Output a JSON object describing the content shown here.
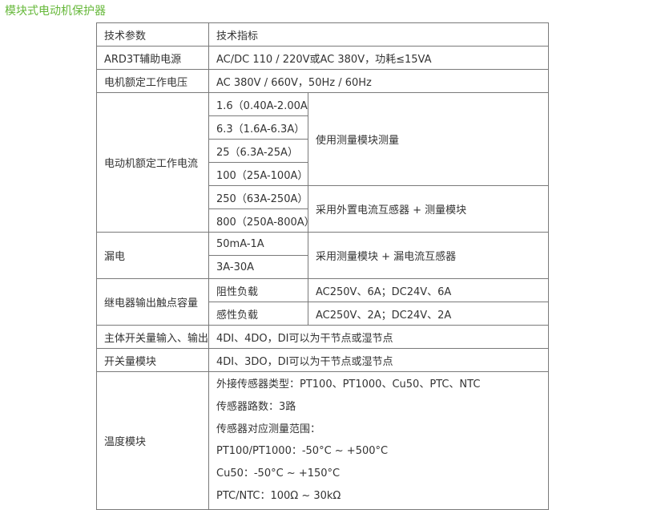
{
  "title": "模块式电动机保护器",
  "header": {
    "param": "技术参数",
    "spec": "技术指标"
  },
  "aux_power": {
    "param": "ARD3T辅助电源",
    "spec": "AC/DC 110 / 220V或AC 380V，功耗≤15VA"
  },
  "rated_voltage": {
    "param": "电机额定工作电压",
    "spec": "AC 380V / 660V，50Hz / 60Hz"
  },
  "rated_current": {
    "param": "电动机额定工作电流",
    "ranges": [
      "1.6（0.40A-2.00A）",
      "6.3（1.6A-6.3A）",
      "25（6.3A-25A）",
      "100（25A-100A）",
      "250（63A-250A）",
      "800（250A-800A）"
    ],
    "method_1": "使用测量模块测量",
    "method_2": "采用外置电流互感器 + 测量模块"
  },
  "leakage": {
    "param": "漏电",
    "ranges": [
      "50mA-1A",
      "3A-30A"
    ],
    "method": "采用测量模块 + 漏电流互感器"
  },
  "relay": {
    "param": "继电器输出触点容量",
    "rows": [
      {
        "load": "阻性负载",
        "value": "AC250V、6A；DC24V、6A"
      },
      {
        "load": "感性负载",
        "value": "AC250V、2A；DC24V、2A"
      }
    ]
  },
  "main_io": {
    "param": "主体开关量输入、输出",
    "spec": "4DI、4DO，DI可以为干节点或湿节点"
  },
  "switch_module": {
    "param": "开关量模块",
    "spec": "4DI、3DO，DI可以为干节点或湿节点"
  },
  "temp_module": {
    "param": "温度模块",
    "lines": [
      "外接传感器类型：PT100、PT1000、Cu50、PTC、NTC",
      "传感器路数：3路",
      "传感器对应测量范围：",
      "PT100/PT1000：-50°C ~ +500°C",
      "Cu50：-50°C ~ +150°C",
      "PTC/NTC：100Ω ~ 30kΩ"
    ]
  }
}
